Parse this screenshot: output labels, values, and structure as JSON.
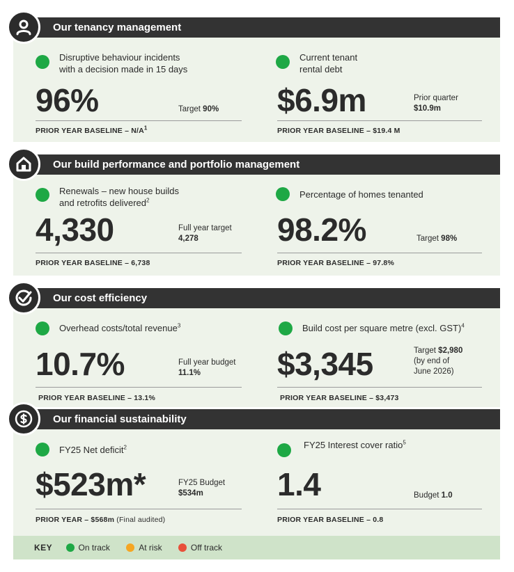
{
  "sections": [
    {
      "title": "Our tenancy management",
      "icon": "person-icon",
      "left": {
        "label": [
          "Disruptive behaviour incidents",
          "with a decision made in 15 days"
        ],
        "value": "96%",
        "side_line1": "Target",
        "side_bold": "90%",
        "baseline": "PRIOR YEAR BASELINE – N/A",
        "baseline_sup": "1",
        "status": "On track"
      },
      "right": {
        "label": [
          "Current tenant",
          "rental debt"
        ],
        "value": "$6.9m",
        "side_line1": "Prior quarter",
        "side_bold": "$10.9m",
        "baseline": "PRIOR YEAR BASELINE – $19.4 M",
        "status": "On track"
      }
    },
    {
      "title": "Our build performance and portfolio management",
      "icon": "house-icon",
      "left": {
        "label": [
          "Renewals – new house builds",
          "and retrofits delivered"
        ],
        "label_sup": "2",
        "value": "4,330",
        "side_line1": "Full year target",
        "side_bold": "4,278",
        "baseline": "PRIOR YEAR BASELINE – 6,738",
        "status": "On track"
      },
      "right": {
        "label": [
          "Percentage of homes tenanted"
        ],
        "value": "98.2%",
        "side_line1": "Target",
        "side_bold": "98%",
        "baseline": "PRIOR YEAR BASELINE – 97.8%",
        "status": "On track"
      }
    },
    {
      "title": "Our cost efficiency",
      "icon": "check-circle-icon",
      "left": {
        "label": [
          "Overhead costs/total revenue"
        ],
        "label_sup": "3",
        "value": "10.7%",
        "side_line1": "Full year budget",
        "side_bold": "11.1%",
        "baseline": "PRIOR YEAR BASELINE – 13.1%",
        "status": "On track"
      },
      "right": {
        "label": [
          "Build cost per square metre (excl. GST)"
        ],
        "label_sup": "4",
        "value": "$3,345",
        "side_line1": "Target",
        "side_bold": "$2,980",
        "side_line2": "(by end of",
        "side_line3": "June 2026)",
        "baseline": "PRIOR YEAR BASELINE – $3,473",
        "status": "On track"
      }
    },
    {
      "title": "Our financial sustainability",
      "icon": "dollar-icon",
      "left": {
        "label": [
          "FY25 Net deficit"
        ],
        "label_sup": "2",
        "value": "$523m*",
        "side_line1": "FY25 Budget",
        "side_bold": "$534m",
        "baseline": "PRIOR YEAR – $568m",
        "baseline_note": "(Final audited)",
        "status": "On track"
      },
      "right": {
        "label": [
          "FY25 Interest cover ratio"
        ],
        "label_sup": "5",
        "value": "1.4",
        "side_line1": "Budget",
        "side_bold": "1.0",
        "baseline": "PRIOR YEAR BASELINE – 0.8",
        "status": "On track"
      }
    }
  ],
  "key": {
    "title": "KEY",
    "items": [
      {
        "label": "On track",
        "color": "#1ea845"
      },
      {
        "label": "At risk",
        "color": "#f5a623"
      },
      {
        "label": "Off track",
        "color": "#e8503a"
      }
    ]
  }
}
